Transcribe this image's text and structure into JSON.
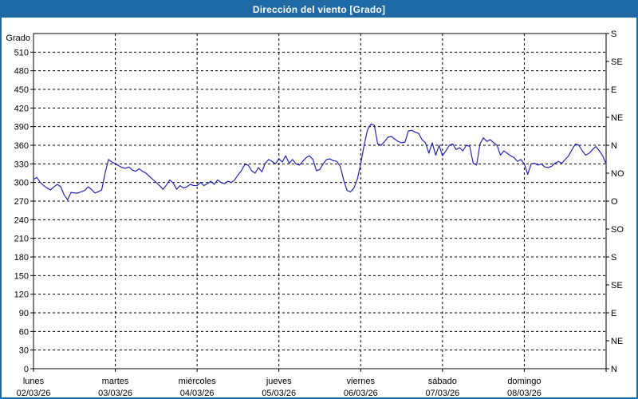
{
  "header": {
    "title": "Dirección del viento [Grado]"
  },
  "colors": {
    "titlebar_bg": "#1f6aa5",
    "frame_border": "#1f6aa5",
    "line": "#2323b8",
    "grid": "#000000",
    "axis": "#000000",
    "text": "#000000",
    "title_text": "#ffffff",
    "plot_bg": "#ffffff"
  },
  "chart_data": {
    "type": "line",
    "title": "Dirección del viento [Grado]",
    "ylabel": "Grado",
    "ylim": [
      0,
      540
    ],
    "y_tick_step": 30,
    "y_ticks": [
      0,
      30,
      60,
      90,
      120,
      150,
      180,
      210,
      240,
      270,
      300,
      330,
      360,
      390,
      420,
      450,
      480,
      510
    ],
    "grid": "dashed",
    "right_axis_ticks": [
      {
        "value": 540,
        "label": "S"
      },
      {
        "value": 495,
        "label": "SE"
      },
      {
        "value": 450,
        "label": "E"
      },
      {
        "value": 405,
        "label": "NE"
      },
      {
        "value": 360,
        "label": "N"
      },
      {
        "value": 315,
        "label": "NO"
      },
      {
        "value": 270,
        "label": "O"
      },
      {
        "value": 225,
        "label": "SO"
      },
      {
        "value": 180,
        "label": "S"
      },
      {
        "value": 135,
        "label": "SE"
      },
      {
        "value": 90,
        "label": "E"
      },
      {
        "value": 45,
        "label": "NE"
      },
      {
        "value": 0,
        "label": "N"
      }
    ],
    "x_days": [
      {
        "name": "lunes",
        "date": "02/03/26"
      },
      {
        "name": "martes",
        "date": "03/03/26"
      },
      {
        "name": "miércoles",
        "date": "04/03/26"
      },
      {
        "name": "jueves",
        "date": "05/03/26"
      },
      {
        "name": "viernes",
        "date": "06/03/26"
      },
      {
        "name": "sábado",
        "date": "07/03/26"
      },
      {
        "name": "domingo",
        "date": "08/03/26"
      }
    ],
    "points_per_day": 24,
    "values": [
      305,
      308,
      300,
      295,
      291,
      288,
      293,
      297,
      293,
      280,
      272,
      284,
      283,
      283,
      285,
      287,
      293,
      289,
      283,
      285,
      288,
      315,
      337,
      333,
      330,
      327,
      324,
      323,
      325,
      320,
      318,
      322,
      318,
      315,
      310,
      305,
      300,
      295,
      289,
      296,
      304,
      299,
      289,
      295,
      291,
      293,
      297,
      295,
      295,
      300,
      295,
      298,
      302,
      297,
      304,
      300,
      298,
      302,
      300,
      304,
      312,
      319,
      329,
      328,
      319,
      315,
      324,
      317,
      331,
      337,
      334,
      330,
      338,
      333,
      343,
      331,
      337,
      330,
      328,
      334,
      340,
      343,
      337,
      319,
      321,
      330,
      337,
      338,
      335,
      334,
      326,
      304,
      287,
      285,
      291,
      305,
      330,
      360,
      385,
      394,
      392,
      362,
      360,
      366,
      373,
      374,
      370,
      366,
      364,
      365,
      383,
      384,
      381,
      379,
      369,
      364,
      347,
      364,
      344,
      360,
      343,
      351,
      360,
      362,
      353,
      356,
      351,
      360,
      358,
      331,
      328,
      362,
      372,
      366,
      369,
      364,
      360,
      344,
      351,
      347,
      343,
      340,
      334,
      337,
      330,
      313,
      330,
      331,
      328,
      330,
      325,
      324,
      326,
      331,
      334,
      331,
      337,
      343,
      353,
      362,
      360,
      351,
      344,
      347,
      353,
      358,
      351,
      343,
      330
    ]
  }
}
